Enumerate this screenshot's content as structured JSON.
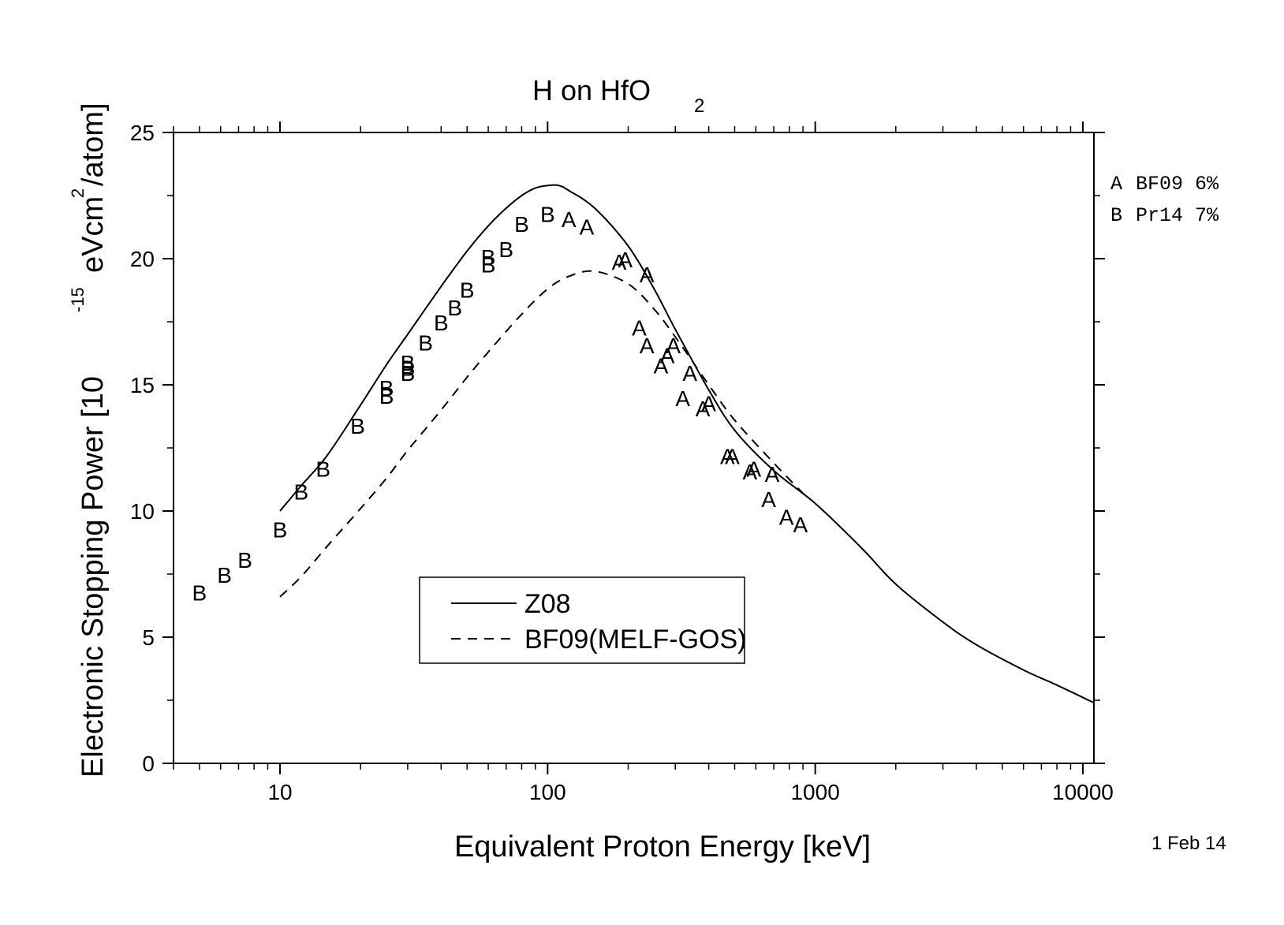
{
  "chart_data": {
    "type": "line",
    "title": "H on HfO",
    "title_subscript": "2",
    "xlabel": "Equivalent Proton Energy [keV]",
    "ylabel": {
      "prefix": "Electronic Stopping Power [10",
      "exponent": "-15",
      "middle": "eVcm",
      "exponent2": "2",
      "suffix": "/atom]"
    },
    "x_scale": "log",
    "xlim": [
      4,
      11000
    ],
    "ylim": [
      0,
      25
    ],
    "x_ticks": [
      {
        "value": 10,
        "label": "10"
      },
      {
        "value": 100,
        "label": "100"
      },
      {
        "value": 1000,
        "label": "1000"
      },
      {
        "value": 10000,
        "label": "10000"
      }
    ],
    "y_ticks": [
      {
        "value": 0,
        "label": "0"
      },
      {
        "value": 5,
        "label": "5"
      },
      {
        "value": 10,
        "label": "10"
      },
      {
        "value": 15,
        "label": "15"
      },
      {
        "value": 20,
        "label": "20"
      },
      {
        "value": 25,
        "label": "25"
      }
    ],
    "grid": false,
    "series": [
      {
        "name": "Z08",
        "style": "solid",
        "x": [
          10,
          12,
          15,
          20,
          25,
          30,
          40,
          50,
          60,
          70,
          80,
          90,
          100,
          110,
          120,
          150,
          200,
          250,
          300,
          400,
          500,
          700,
          1000,
          1500,
          2000,
          3000,
          4000,
          6000,
          8000,
          11000
        ],
        "y": [
          10.0,
          11.0,
          12.2,
          14.2,
          15.8,
          17.0,
          18.9,
          20.3,
          21.3,
          22.0,
          22.5,
          22.8,
          22.9,
          22.9,
          22.7,
          22.0,
          20.5,
          18.8,
          17.2,
          14.8,
          13.2,
          11.6,
          10.3,
          8.5,
          7.1,
          5.6,
          4.7,
          3.7,
          3.1,
          2.4
        ]
      },
      {
        "name": "BF09(MELF-GOS)",
        "style": "dashed",
        "x": [
          10,
          12,
          15,
          20,
          25,
          30,
          40,
          50,
          60,
          80,
          100,
          120,
          150,
          200,
          250,
          300,
          400,
          500,
          700,
          900
        ],
        "y": [
          6.6,
          7.4,
          8.6,
          10.1,
          11.3,
          12.4,
          14.0,
          15.3,
          16.3,
          17.8,
          18.8,
          19.3,
          19.5,
          19.0,
          18.0,
          16.9,
          15.0,
          13.6,
          11.9,
          10.7
        ]
      }
    ],
    "scatter": [
      {
        "marker": "A",
        "name": "BF09 6%",
        "x": [
          120,
          140,
          185,
          195,
          235,
          220,
          235,
          265,
          280,
          295,
          340,
          320,
          380,
          400,
          470,
          490,
          570,
          590,
          690,
          670,
          780,
          880
        ],
        "y": [
          21.6,
          21.3,
          19.9,
          20.0,
          19.4,
          17.3,
          16.6,
          15.8,
          16.2,
          16.6,
          15.5,
          14.5,
          14.1,
          14.3,
          12.2,
          12.2,
          11.6,
          11.7,
          11.5,
          10.5,
          9.8,
          9.5
        ]
      },
      {
        "marker": "B",
        "name": "Pr14 7%",
        "x": [
          5,
          6.2,
          7.4,
          10,
          12,
          14.5,
          19.5,
          25,
          25,
          30,
          30,
          30,
          35,
          40,
          45,
          50,
          60,
          60,
          70,
          80,
          100
        ],
        "y": [
          6.8,
          7.5,
          8.1,
          9.3,
          10.8,
          11.7,
          13.4,
          14.9,
          14.6,
          15.9,
          15.7,
          15.5,
          16.7,
          17.5,
          18.1,
          18.8,
          20.1,
          19.8,
          20.4,
          21.4,
          21.8
        ]
      }
    ],
    "legend": {
      "placement": "center-left",
      "entries": [
        {
          "label": "Z08",
          "style": "solid"
        },
        {
          "label": "BF09(MELF-GOS)",
          "style": "dashed"
        }
      ]
    },
    "marker_key": [
      {
        "marker": "A",
        "label": "BF09 6%"
      },
      {
        "marker": "B",
        "label": "Pr14 7%"
      }
    ],
    "date_note": "1 Feb 14"
  }
}
